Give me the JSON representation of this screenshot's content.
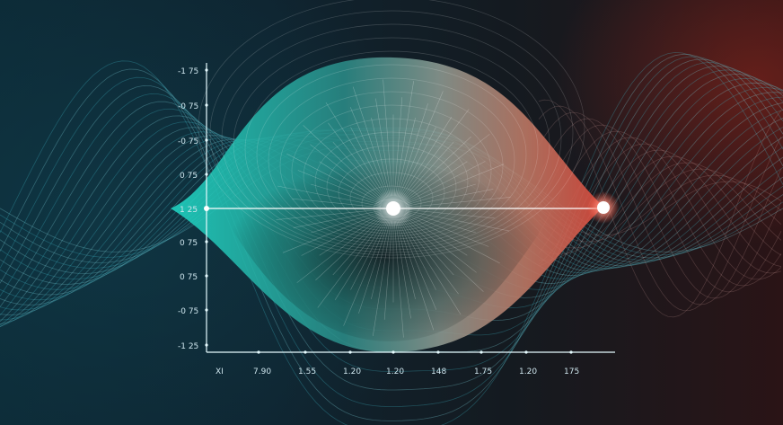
{
  "axis": {
    "y_ticks": [
      "-1 75",
      "-0 75",
      "-0 75",
      "0 75",
      "1 25",
      "0 75",
      "0 75",
      "-0 75",
      "-1 25"
    ],
    "x_ticks": [
      "XI",
      "7.90",
      "1.55",
      "1.20",
      "1.20",
      "148",
      "1.75",
      "1.20",
      "175"
    ]
  },
  "colors": {
    "teal": "#2ee6d2",
    "coral": "#e0574a",
    "axis": "#bff4ff"
  }
}
